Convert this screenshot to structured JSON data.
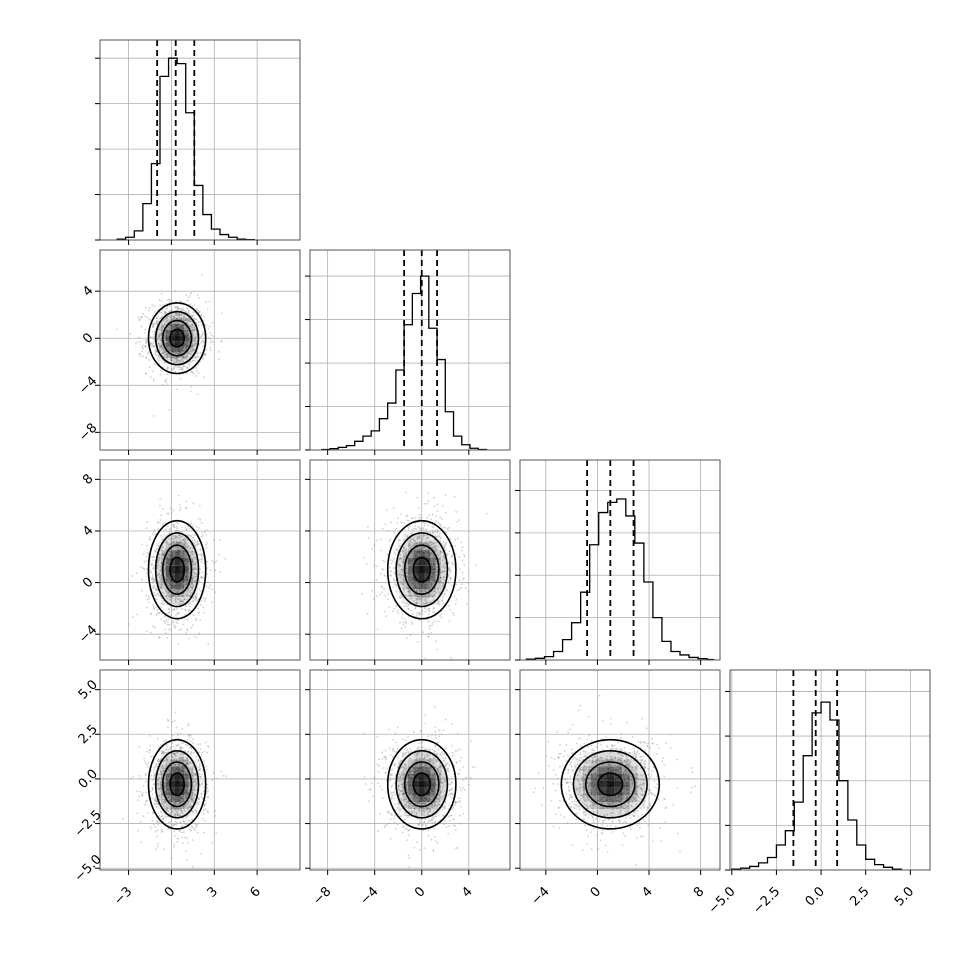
{
  "chart_data": {
    "type": "corner",
    "title": "",
    "n_params": 4,
    "grid": true,
    "axis_ranges": [
      [
        -5.0,
        9.0
      ],
      [
        -9.5,
        7.5
      ],
      [
        -6.0,
        9.5
      ],
      [
        -5.1,
        6.1
      ]
    ],
    "tick_values": [
      [
        -3,
        0,
        3,
        6
      ],
      [
        -8,
        -4,
        0,
        4
      ],
      [
        -4,
        0,
        4,
        8
      ],
      [
        -5.0,
        -2.5,
        0.0,
        2.5,
        5.0
      ]
    ],
    "tick_labels": [
      [
        "−3",
        "0",
        "3",
        "6"
      ],
      [
        "−8",
        "−4",
        "0",
        "4"
      ],
      [
        "−4",
        "0",
        "4",
        "8"
      ],
      [
        "−5.0",
        "−2.5",
        "0.0",
        "2.5",
        "5.0"
      ]
    ],
    "diagonals": [
      {
        "quantiles": [
          -1.0,
          0.3,
          1.6
        ],
        "bin_edges": [
          -3.8,
          -3.2,
          -2.6,
          -2.0,
          -1.4,
          -0.8,
          -0.2,
          0.4,
          1.0,
          1.6,
          2.2,
          2.8,
          3.4,
          4.0,
          4.6,
          5.2,
          5.8
        ],
        "counts": [
          0.5,
          1.5,
          5,
          20,
          42,
          90,
          100,
          97,
          70,
          30,
          14,
          6,
          3,
          1.5,
          0.5,
          0.2
        ],
        "ymax": 110
      },
      {
        "quantiles": [
          -1.5,
          0.0,
          1.3
        ],
        "bin_edges": [
          -8.5,
          -7.8,
          -7.1,
          -6.4,
          -5.7,
          -5.0,
          -4.3,
          -3.6,
          -2.9,
          -2.2,
          -1.5,
          -0.8,
          -0.1,
          0.6,
          1.3,
          2.0,
          2.7,
          3.4,
          4.1,
          4.8,
          5.5
        ],
        "counts": [
          0.3,
          0.8,
          1.5,
          2.5,
          5,
          8,
          11,
          18,
          27,
          46,
          72,
          90,
          100,
          70,
          52,
          22,
          8,
          3,
          1,
          0.3
        ],
        "ymax": 115
      },
      {
        "quantiles": [
          -0.8,
          1.0,
          2.8
        ],
        "bin_edges": [
          -5.5,
          -4.8,
          -4.1,
          -3.4,
          -2.7,
          -2.0,
          -1.3,
          -0.6,
          0.1,
          0.8,
          1.5,
          2.2,
          2.9,
          3.6,
          4.3,
          5.0,
          5.7,
          6.4,
          7.1,
          7.8,
          8.5,
          9.0
        ],
        "counts": [
          0.5,
          1,
          2,
          5,
          12,
          22,
          40,
          68,
          87,
          93,
          95,
          85,
          69,
          46,
          25,
          11,
          5,
          3,
          1.5,
          0.8,
          0.3
        ],
        "ymax": 118
      },
      {
        "quantiles": [
          -1.55,
          -0.3,
          0.9
        ],
        "bin_edges": [
          -5.0,
          -4.5,
          -4.0,
          -3.5,
          -3.0,
          -2.5,
          -2.0,
          -1.5,
          -1.0,
          -0.5,
          0.0,
          0.5,
          1.0,
          1.5,
          2.0,
          2.5,
          3.0,
          3.5,
          4.0,
          4.5
        ],
        "counts": [
          0.5,
          1,
          2,
          4,
          7,
          14,
          22,
          38,
          64,
          88,
          94,
          84,
          50,
          28,
          14,
          6,
          3,
          1.5,
          0.5
        ],
        "ymax": 112
      }
    ],
    "scatter_panels": [
      {
        "x_param": 0,
        "y_param": 1,
        "center": [
          0.4,
          0.0
        ],
        "spread": [
          1.0,
          1.5
        ]
      },
      {
        "x_param": 0,
        "y_param": 2,
        "center": [
          0.4,
          1.0
        ],
        "spread": [
          1.0,
          1.9
        ]
      },
      {
        "x_param": 1,
        "y_param": 2,
        "center": [
          0.0,
          1.0
        ],
        "spread": [
          1.45,
          1.9
        ]
      },
      {
        "x_param": 0,
        "y_param": 3,
        "center": [
          0.4,
          -0.3
        ],
        "spread": [
          1.0,
          1.25
        ]
      },
      {
        "x_param": 1,
        "y_param": 3,
        "center": [
          0.0,
          -0.3
        ],
        "spread": [
          1.45,
          1.25
        ]
      },
      {
        "x_param": 2,
        "y_param": 3,
        "center": [
          1.0,
          -0.3
        ],
        "spread": [
          1.9,
          1.25
        ]
      }
    ]
  }
}
